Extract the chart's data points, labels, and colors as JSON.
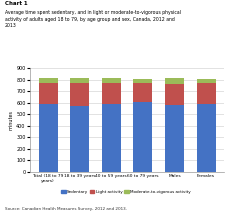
{
  "title_line1": "Chart 1",
  "title_line2": "Average time spent sedentary, and in light or moderate-to-vigorous physical\nactivity of adults aged 18 to 79, by age group and sex, Canada, 2012 and\n2013",
  "ylabel": "minutes",
  "ylim": [
    0,
    900
  ],
  "yticks": [
    0,
    100,
    200,
    300,
    400,
    500,
    600,
    700,
    800,
    900
  ],
  "categories": [
    "Total (18 to 79\nyears)",
    "18 to 39 years",
    "40 to 59 years",
    "60 to 79 years",
    "Males",
    "Females"
  ],
  "sedentary": [
    590,
    575,
    590,
    605,
    580,
    590
  ],
  "light": [
    185,
    195,
    185,
    165,
    185,
    185
  ],
  "mvpa": [
    38,
    42,
    40,
    32,
    48,
    28
  ],
  "color_sedentary": "#4472C4",
  "color_light": "#C0504D",
  "color_mvpa": "#9BBB59",
  "legend_labels": [
    "Sedentary",
    "Light activity",
    "Moderate-to-vigorous activity"
  ],
  "source": "Source: Canadian Health Measures Survey, 2012 and 2013.",
  "bar_width": 0.6,
  "background_color": "#FFFFFF",
  "grid_color": "#CCCCCC"
}
